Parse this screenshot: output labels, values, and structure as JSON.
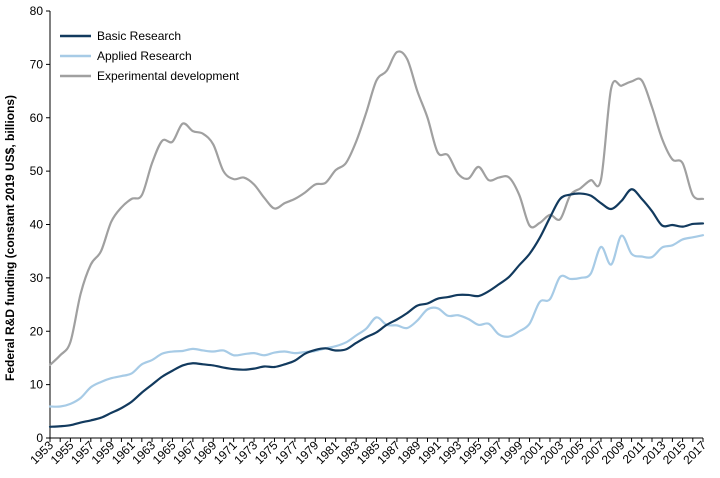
{
  "chart_data": {
    "type": "line",
    "title": "",
    "xlabel": "",
    "ylabel": "Federal R&D funding (constant 2019 US$, billions)",
    "xlim": [
      1953,
      2017
    ],
    "ylim": [
      0,
      80
    ],
    "yticks": [
      0,
      10,
      20,
      30,
      40,
      50,
      60,
      70,
      80
    ],
    "xticks": [
      "1953",
      "1955",
      "1957",
      "1959",
      "1961",
      "1963",
      "1965",
      "1967",
      "1969",
      "1971",
      "1973",
      "1975",
      "1977",
      "1979",
      "1981",
      "1983",
      "1985",
      "1987",
      "1989",
      "1991",
      "1993",
      "1995",
      "1997",
      "1999",
      "2001",
      "2003",
      "2005",
      "2007",
      "2009",
      "2011",
      "2013",
      "2015",
      "2017"
    ],
    "grid": false,
    "legend_position": "top-left",
    "x": [
      1953,
      1954,
      1955,
      1956,
      1957,
      1958,
      1959,
      1960,
      1961,
      1962,
      1963,
      1964,
      1965,
      1966,
      1967,
      1968,
      1969,
      1970,
      1971,
      1972,
      1973,
      1974,
      1975,
      1976,
      1977,
      1978,
      1979,
      1980,
      1981,
      1982,
      1983,
      1984,
      1985,
      1986,
      1987,
      1988,
      1989,
      1990,
      1991,
      1992,
      1993,
      1994,
      1995,
      1996,
      1997,
      1998,
      1999,
      2000,
      2001,
      2002,
      2003,
      2004,
      2005,
      2006,
      2007,
      2008,
      2009,
      2010,
      2011,
      2012,
      2013,
      2014,
      2015,
      2016,
      2017
    ],
    "series": [
      {
        "name": "Basic Research",
        "color": "#123a5e",
        "values": [
          2.1,
          2.2,
          2.4,
          2.9,
          3.3,
          3.8,
          4.7,
          5.6,
          6.8,
          8.5,
          10.0,
          11.5,
          12.6,
          13.6,
          14.0,
          13.8,
          13.6,
          13.2,
          12.9,
          12.8,
          13.0,
          13.4,
          13.3,
          13.8,
          14.5,
          15.8,
          16.5,
          16.8,
          16.4,
          16.6,
          17.8,
          18.9,
          19.8,
          21.2,
          22.2,
          23.4,
          24.8,
          25.2,
          26.1,
          26.4,
          26.8,
          26.8,
          26.6,
          27.5,
          28.8,
          30.2,
          32.4,
          34.5,
          37.5,
          41.3,
          44.8,
          45.6,
          45.8,
          45.4,
          44.0,
          42.9,
          44.4,
          46.6,
          44.8,
          42.5,
          39.8,
          39.9,
          39.6,
          40.1,
          40.2
        ]
      },
      {
        "name": "Applied Research",
        "color": "#a7cbe6",
        "values": [
          5.9,
          5.9,
          6.4,
          7.5,
          9.5,
          10.5,
          11.2,
          11.6,
          12.1,
          13.8,
          14.6,
          15.8,
          16.2,
          16.3,
          16.7,
          16.4,
          16.2,
          16.4,
          15.5,
          15.7,
          15.9,
          15.5,
          16.0,
          16.2,
          15.9,
          16.1,
          16.3,
          16.8,
          17.2,
          17.9,
          19.2,
          20.5,
          22.6,
          21.2,
          21.1,
          20.6,
          22.0,
          24.1,
          24.3,
          22.9,
          23.0,
          22.3,
          21.2,
          21.4,
          19.4,
          19.0,
          20.0,
          21.4,
          25.5,
          26.0,
          30.2,
          29.8,
          30.0,
          30.8,
          35.8,
          32.5,
          37.9,
          34.5,
          34.0,
          33.9,
          35.7,
          36.1,
          37.2,
          37.6,
          38.0
        ]
      },
      {
        "name": "Experimental development",
        "color": "#a0a0a0",
        "values": [
          13.7,
          15.5,
          18.0,
          27.0,
          32.5,
          35.0,
          40.5,
          43.2,
          44.8,
          45.5,
          51.5,
          55.7,
          55.5,
          58.9,
          57.5,
          57.0,
          55.0,
          50.0,
          48.5,
          48.8,
          47.5,
          45.0,
          43.0,
          44.0,
          44.8,
          46.0,
          47.5,
          47.8,
          50.2,
          51.5,
          55.5,
          61.0,
          67.0,
          68.8,
          72.3,
          71.0,
          65.0,
          60.0,
          53.5,
          53.0,
          49.5,
          48.6,
          50.8,
          48.3,
          48.8,
          48.8,
          45.5,
          39.8,
          40.3,
          41.8,
          41.0,
          45.5,
          46.8,
          48.3,
          48.4,
          65.5,
          66.0,
          66.8,
          67.0,
          62.0,
          56.0,
          52.2,
          51.5,
          45.5,
          44.8
        ]
      }
    ]
  }
}
